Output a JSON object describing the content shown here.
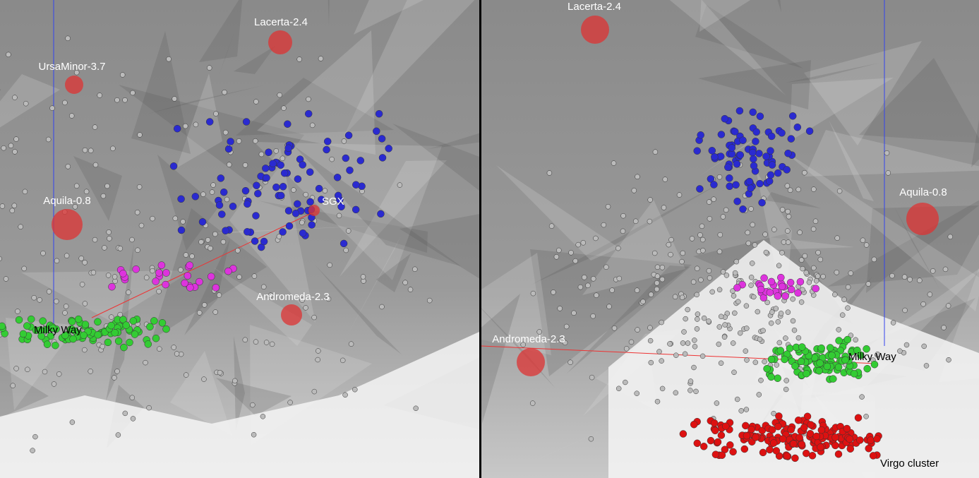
{
  "panels": [
    {
      "labels": [
        "Lacerta-2.4",
        "UrsaMinor-3.7",
        "Aquila-0.8",
        "SGX",
        "Andromeda-2.3",
        "Milky Way"
      ]
    },
    {
      "labels": [
        "Lacerta-2.4",
        "Aquila-0.8",
        "Andromeda-2.3",
        "Milky Way",
        "Virgo cluster"
      ]
    }
  ]
}
